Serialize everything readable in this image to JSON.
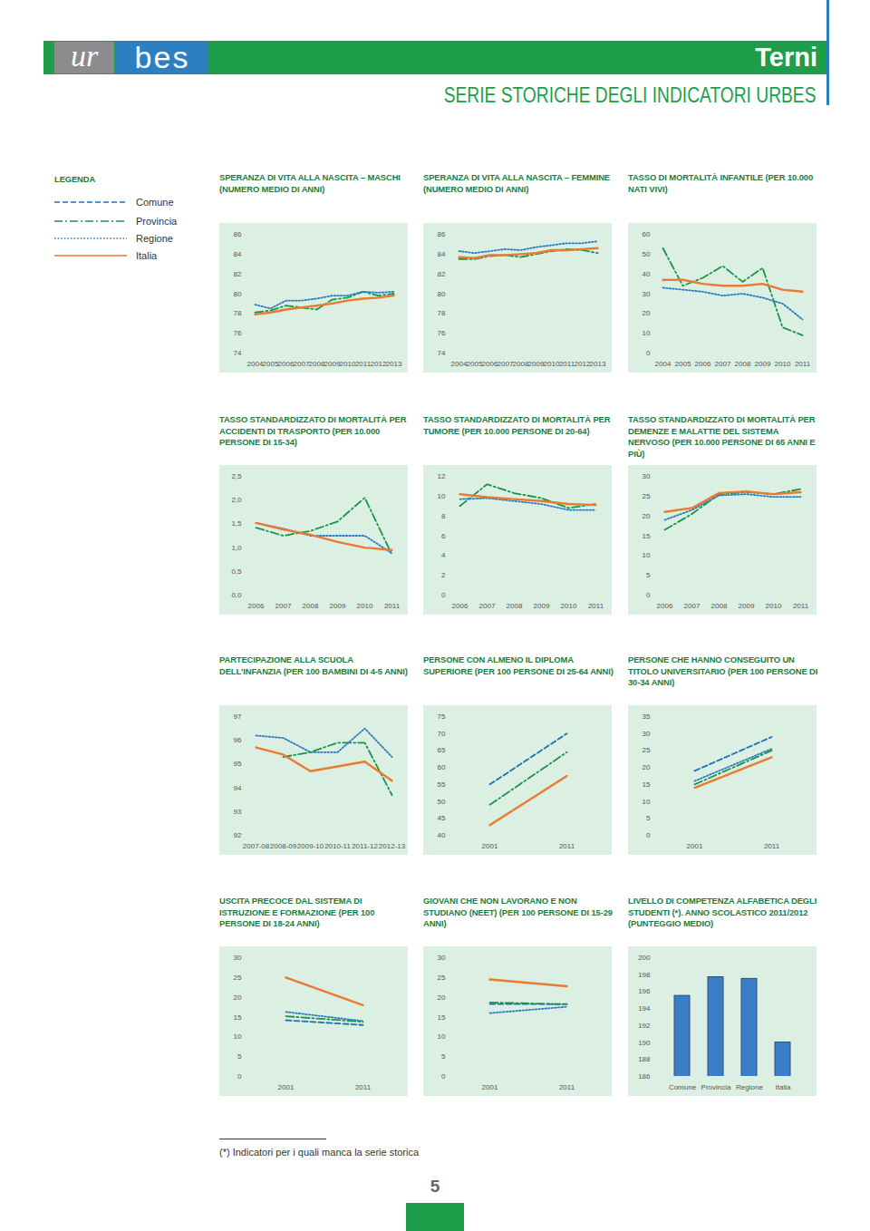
{
  "page": {
    "brand_left": "ur",
    "brand_right": "bes",
    "city": "Terni",
    "subtitle": "SERIE STORICHE DEGLI INDICATORI URBES",
    "legenda": {
      "title": "LEGENDA",
      "items": [
        {
          "name": "Comune",
          "color": "#1f6fb2",
          "line_style": "dashed"
        },
        {
          "name": "Provincia",
          "color": "#1a9448",
          "line_style": "dashdot"
        },
        {
          "name": "Regione",
          "color": "#2b7cc0",
          "line_style": "dotted"
        },
        {
          "name": "Italia",
          "color": "#ea7a2f",
          "line_style": "solid"
        }
      ]
    },
    "footnote": "(*) Indicatori per i quali manca la serie storica",
    "page_number": "5"
  },
  "chart_data": [
    {
      "type": "line",
      "title": "SPERANZA DI VITA ALLA NASCITA – MASCHI (NUMERO MEDIO DI ANNI)",
      "categories": [
        "2004",
        "2005",
        "2006",
        "2007",
        "2008",
        "2009",
        "2010",
        "2011",
        "2012",
        "2013"
      ],
      "series": [
        {
          "name": "Provincia",
          "color": "#1a9448",
          "line_style": "dashdot",
          "values": [
            78.1,
            78.3,
            78.8,
            78.6,
            78.4,
            79.4,
            79.6,
            80.2,
            79.8,
            80.0
          ]
        },
        {
          "name": "Regione",
          "color": "#2b7cc0",
          "line_style": "dotted",
          "values": [
            78.9,
            78.5,
            79.3,
            79.3,
            79.5,
            79.8,
            79.8,
            80.2,
            80.1,
            80.2
          ]
        },
        {
          "name": "Italia",
          "color": "#ea7a2f",
          "line_style": "solid",
          "values": [
            77.9,
            78.1,
            78.4,
            78.6,
            78.8,
            79.0,
            79.3,
            79.5,
            79.6,
            79.8
          ]
        }
      ],
      "ylim": [
        74,
        86
      ],
      "yticks": [
        74,
        76,
        78,
        80,
        82,
        84,
        86
      ]
    },
    {
      "type": "line",
      "title": "SPERANZA DI VITA ALLA NASCITA – FEMMINE (NUMERO MEDIO DI ANNI)",
      "categories": [
        "2004",
        "2005",
        "2006",
        "2007",
        "2008",
        "2009",
        "2010",
        "2011",
        "2012",
        "2013"
      ],
      "series": [
        {
          "name": "Provincia",
          "color": "#1a9448",
          "line_style": "dashdot",
          "values": [
            83.5,
            83.5,
            83.8,
            83.9,
            83.7,
            84.0,
            84.3,
            84.5,
            84.4,
            84.1
          ]
        },
        {
          "name": "Regione",
          "color": "#2b7cc0",
          "line_style": "dotted",
          "values": [
            84.3,
            84.1,
            84.3,
            84.5,
            84.4,
            84.7,
            84.9,
            85.1,
            85.1,
            85.3
          ]
        },
        {
          "name": "Italia",
          "color": "#ea7a2f",
          "line_style": "solid",
          "values": [
            83.7,
            83.6,
            83.9,
            83.9,
            84.0,
            84.1,
            84.4,
            84.4,
            84.5,
            84.6
          ]
        }
      ],
      "ylim": [
        74,
        86
      ],
      "yticks": [
        74,
        76,
        78,
        80,
        82,
        84,
        86
      ]
    },
    {
      "type": "line",
      "title": "TASSO DI MORTALITÀ INFANTILE (PER 10.000 NATI VIVI)",
      "categories": [
        "2004",
        "2005",
        "2006",
        "2007",
        "2008",
        "2009",
        "2010",
        "2011"
      ],
      "series": [
        {
          "name": "Provincia",
          "color": "#1a9448",
          "line_style": "dashdot",
          "values": [
            53,
            34,
            38,
            44,
            36,
            43,
            13,
            9
          ]
        },
        {
          "name": "Regione",
          "color": "#2b7cc0",
          "line_style": "dotted",
          "values": [
            33,
            32,
            31,
            29,
            30,
            28,
            25,
            17
          ]
        },
        {
          "name": "Italia",
          "color": "#ea7a2f",
          "line_style": "solid",
          "values": [
            37,
            37,
            35,
            34,
            34,
            35,
            32,
            31
          ]
        }
      ],
      "ylim": [
        0,
        60
      ],
      "yticks": [
        0,
        10,
        20,
        30,
        40,
        50,
        60
      ]
    },
    {
      "type": "line",
      "title": "TASSO STANDARDIZZATO DI MORTALITÀ PER ACCIDENTI DI TRASPORTO (PER 10.000 PERSONE DI 15-34)",
      "categories": [
        "2006",
        "2007",
        "2008",
        "2009",
        "2010",
        "2011"
      ],
      "series": [
        {
          "name": "Provincia",
          "color": "#1a9448",
          "line_style": "dashdot",
          "values": [
            1.42,
            1.25,
            1.35,
            1.55,
            2.05,
            0.85
          ]
        },
        {
          "name": "Regione",
          "color": "#2b7cc0",
          "line_style": "dotted",
          "values": [
            1.52,
            1.4,
            1.25,
            1.25,
            1.25,
            0.88
          ]
        },
        {
          "name": "Italia",
          "color": "#ea7a2f",
          "line_style": "solid",
          "values": [
            1.52,
            1.38,
            1.27,
            1.12,
            1.0,
            0.95
          ]
        }
      ],
      "ylim": [
        0,
        2.5
      ],
      "yticks": [
        {
          "value": 0,
          "label": "0,0"
        },
        {
          "value": 0.5,
          "label": "0,5"
        },
        {
          "value": 1,
          "label": "1,0"
        },
        {
          "value": 1.5,
          "label": "1,5"
        },
        {
          "value": 2,
          "label": "2,0"
        },
        {
          "value": 2.5,
          "label": "2,5"
        }
      ]
    },
    {
      "type": "line",
      "title": "TASSO STANDARDIZZATO DI MORTALITÀ PER TUMORE (PER 10.000 PERSONE DI 20-64)",
      "categories": [
        "2006",
        "2007",
        "2008",
        "2009",
        "2010",
        "2011"
      ],
      "series": [
        {
          "name": "Provincia",
          "color": "#1a9448",
          "line_style": "dashdot",
          "values": [
            9.0,
            11.2,
            10.3,
            9.8,
            8.8,
            9.2
          ]
        },
        {
          "name": "Regione",
          "color": "#2b7cc0",
          "line_style": "dotted",
          "values": [
            9.7,
            9.8,
            9.5,
            9.2,
            8.6,
            8.6
          ]
        },
        {
          "name": "Italia",
          "color": "#ea7a2f",
          "line_style": "solid",
          "values": [
            10.2,
            9.9,
            9.7,
            9.5,
            9.2,
            9.1
          ]
        }
      ],
      "ylim": [
        0,
        12
      ],
      "yticks": [
        0,
        2,
        4,
        6,
        8,
        10,
        12
      ]
    },
    {
      "type": "line",
      "title": "TASSO STANDARDIZZATO DI MORTALITÀ PER DEMENZE E MALATTIE DEL SISTEMA NERVOSO (PER 10.000 PERSONE DI 65 ANNI E PIÙ)",
      "categories": [
        "2006",
        "2007",
        "2008",
        "2009",
        "2010",
        "2011"
      ],
      "series": [
        {
          "name": "Provincia",
          "color": "#1a9448",
          "line_style": "dashdot",
          "values": [
            16.5,
            20.5,
            25.5,
            26.0,
            25.5,
            26.8
          ]
        },
        {
          "name": "Regione",
          "color": "#2b7cc0",
          "line_style": "dotted",
          "values": [
            19.0,
            21.5,
            25.2,
            25.5,
            24.8,
            24.8
          ]
        },
        {
          "name": "Italia",
          "color": "#ea7a2f",
          "line_style": "solid",
          "values": [
            21.0,
            22.0,
            25.8,
            26.2,
            25.5,
            26.0
          ]
        }
      ],
      "ylim": [
        0,
        30
      ],
      "yticks": [
        0,
        5,
        10,
        15,
        20,
        25,
        30
      ]
    },
    {
      "type": "line",
      "title": "PARTECIPAZIONE ALLA SCUOLA DELL'INFANZIA (PER 100 BAMBINI DI 4-5 ANNI)",
      "categories": [
        "2007-08",
        "2008-09",
        "2009-10",
        "2010-11",
        "2011-12",
        "2012-13"
      ],
      "series": [
        {
          "name": "Provincia",
          "color": "#1a9448",
          "line_style": "dashdot",
          "values": [
            null,
            95.3,
            95.5,
            95.9,
            95.9,
            93.7
          ]
        },
        {
          "name": "Regione",
          "color": "#2b7cc0",
          "line_style": "dotted",
          "values": [
            96.2,
            96.1,
            95.5,
            95.5,
            96.5,
            95.3
          ]
        },
        {
          "name": "Italia",
          "color": "#ea7a2f",
          "line_style": "solid",
          "values": [
            95.7,
            95.4,
            94.7,
            94.9,
            95.1,
            94.3
          ]
        }
      ],
      "ylim": [
        92,
        97
      ],
      "yticks": [
        92,
        93,
        94,
        95,
        96,
        97
      ]
    },
    {
      "type": "line",
      "title": "PERSONE CON ALMENO IL DIPLOMA SUPERIORE (PER 100 PERSONE DI 25-64 ANNI)",
      "categories": [
        "2001",
        "2011"
      ],
      "series": [
        {
          "name": "Comune",
          "color": "#1f6fb2",
          "line_style": "dashed",
          "values": [
            55,
            70
          ]
        },
        {
          "name": "Provincia",
          "color": "#1a9448",
          "line_style": "dashdot",
          "values": [
            49,
            64.5
          ]
        },
        {
          "name": "Italia",
          "color": "#ea7a2f",
          "line_style": "solid",
          "values": [
            43,
            57.5
          ]
        }
      ],
      "ylim": [
        40,
        75
      ],
      "yticks": [
        40,
        45,
        50,
        55,
        60,
        65,
        70,
        75
      ]
    },
    {
      "type": "line",
      "title": "PERSONE CHE HANNO CONSEGUITO UN TITOLO UNIVERSITARIO (PER 100 PERSONE DI 30-34 ANNI)",
      "categories": [
        "2001",
        "2011"
      ],
      "series": [
        {
          "name": "Comune",
          "color": "#1f6fb2",
          "line_style": "dashed",
          "values": [
            19,
            29
          ]
        },
        {
          "name": "Provincia",
          "color": "#1a9448",
          "line_style": "dashdot",
          "values": [
            15,
            25
          ]
        },
        {
          "name": "Regione",
          "color": "#2b7cc0",
          "line_style": "dotted",
          "values": [
            16,
            25.5
          ]
        },
        {
          "name": "Italia",
          "color": "#ea7a2f",
          "line_style": "solid",
          "values": [
            14,
            23
          ]
        }
      ],
      "ylim": [
        0,
        35
      ],
      "yticks": [
        0,
        5,
        10,
        15,
        20,
        25,
        30,
        35
      ]
    },
    {
      "type": "line",
      "title": "USCITA PRECOCE DAL SISTEMA DI ISTRUZIONE E FORMAZIONE (PER 100 PERSONE DI 18-24 ANNI)",
      "categories": [
        "2001",
        "2011"
      ],
      "series": [
        {
          "name": "Comune",
          "color": "#1f6fb2",
          "line_style": "dashed",
          "values": [
            14.2,
            13
          ]
        },
        {
          "name": "Provincia",
          "color": "#1a9448",
          "line_style": "dashdot",
          "values": [
            15.2,
            13.8
          ]
        },
        {
          "name": "Regione",
          "color": "#2b7cc0",
          "line_style": "dotted",
          "values": [
            16.3,
            14
          ]
        },
        {
          "name": "Italia",
          "color": "#ea7a2f",
          "line_style": "solid",
          "values": [
            25,
            18
          ]
        }
      ],
      "ylim": [
        0,
        30
      ],
      "yticks": [
        0,
        5,
        10,
        15,
        20,
        25,
        30
      ]
    },
    {
      "type": "line",
      "title": "GIOVANI CHE NON LAVORANO E NON STUDIANO (NEET) (PER 100 PERSONE DI 15-29 ANNI)",
      "categories": [
        "2001",
        "2011"
      ],
      "series": [
        {
          "name": "Comune",
          "color": "#1f6fb2",
          "line_style": "dashed",
          "values": [
            18.3,
            18.3
          ]
        },
        {
          "name": "Provincia",
          "color": "#1a9448",
          "line_style": "dashdot",
          "values": [
            18.7,
            18.2
          ]
        },
        {
          "name": "Regione",
          "color": "#2b7cc0",
          "line_style": "dotted",
          "values": [
            16,
            17.6
          ]
        },
        {
          "name": "Italia",
          "color": "#ea7a2f",
          "line_style": "solid",
          "values": [
            24.5,
            22.8
          ]
        }
      ],
      "ylim": [
        0,
        30
      ],
      "yticks": [
        0,
        5,
        10,
        15,
        20,
        25,
        30
      ]
    },
    {
      "type": "bar",
      "title": "LIVELLO DI COMPETENZA ALFABETICA DEGLI STUDENTI (*). ANNO SCOLASTICO 2011/2012 (PUNTEGGIO MEDIO)",
      "categories": [
        "Comune",
        "Provincia",
        "Regione",
        "Italia"
      ],
      "values": [
        195.5,
        197.7,
        197.5,
        190
      ],
      "color": "#3c7ec5",
      "ylim": [
        186,
        200
      ],
      "yticks": [
        186,
        188,
        190,
        192,
        194,
        196,
        198,
        200
      ]
    }
  ]
}
